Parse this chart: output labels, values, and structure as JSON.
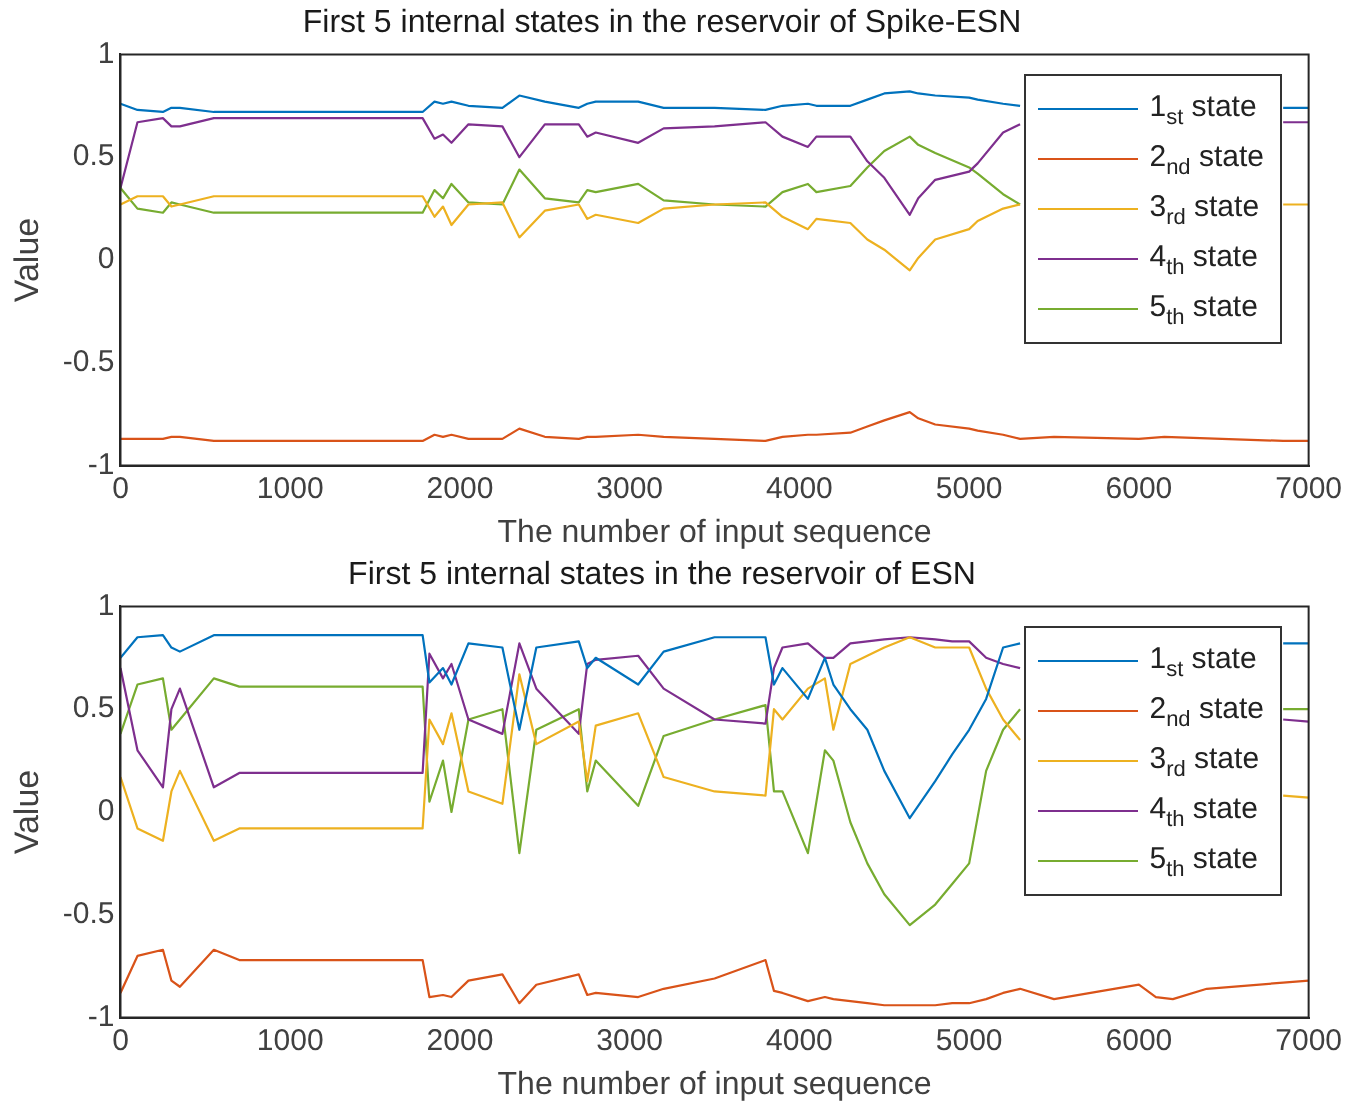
{
  "chart_data": [
    {
      "type": "line",
      "title": "First 5 internal states in the reservoir of Spike-ESN",
      "xlabel": "The number of input sequence",
      "ylabel": "Value",
      "x": [
        0,
        100,
        250,
        300,
        350,
        550,
        1780,
        1850,
        1900,
        1950,
        2050,
        2250,
        2350,
        2500,
        2700,
        2750,
        2800,
        3050,
        3200,
        3500,
        3800,
        3900,
        4050,
        4100,
        4300,
        4400,
        4500,
        4650,
        4700,
        4800,
        5000,
        5050,
        5200,
        5300,
        5500,
        6000,
        6150,
        6850,
        7000
      ],
      "series": [
        {
          "name": "1$_{st}$ state",
          "color": "#0072bd",
          "values": [
            0.76,
            0.73,
            0.72,
            0.74,
            0.74,
            0.72,
            0.72,
            0.77,
            0.76,
            0.77,
            0.75,
            0.74,
            0.8,
            0.77,
            0.74,
            0.76,
            0.77,
            0.77,
            0.74,
            0.74,
            0.73,
            0.75,
            0.76,
            0.75,
            0.75,
            0.78,
            0.81,
            0.82,
            0.81,
            0.8,
            0.79,
            0.78,
            0.76,
            0.75,
            null,
            null,
            null,
            0.74,
            0.74
          ]
        },
        {
          "name": "2$_{nd}$ state",
          "color": "#d95319",
          "values": [
            -0.87,
            -0.87,
            -0.87,
            -0.86,
            -0.86,
            -0.88,
            -0.88,
            -0.85,
            -0.86,
            -0.85,
            -0.87,
            -0.87,
            -0.82,
            -0.86,
            -0.87,
            -0.86,
            -0.86,
            -0.85,
            -0.86,
            -0.87,
            -0.88,
            -0.86,
            -0.85,
            -0.85,
            -0.84,
            -0.81,
            -0.78,
            -0.74,
            -0.77,
            -0.8,
            -0.82,
            -0.83,
            -0.85,
            -0.87,
            -0.86,
            -0.87,
            -0.86,
            -0.88,
            -0.88
          ]
        },
        {
          "name": "3$_{rd}$ state",
          "color": "#edb120",
          "values": [
            0.27,
            0.31,
            0.31,
            0.26,
            0.27,
            0.31,
            0.31,
            0.21,
            0.26,
            0.17,
            0.27,
            0.28,
            0.11,
            0.24,
            0.27,
            0.2,
            0.22,
            0.18,
            0.25,
            0.27,
            0.28,
            0.21,
            0.15,
            0.2,
            0.18,
            0.1,
            0.05,
            -0.05,
            0.01,
            0.1,
            0.15,
            0.19,
            0.25,
            0.27,
            null,
            null,
            null,
            0.27,
            0.27
          ]
        },
        {
          "name": "4$_{th}$ state",
          "color": "#7e2f8e",
          "values": [
            0.35,
            0.67,
            0.69,
            0.65,
            0.65,
            0.69,
            0.69,
            0.59,
            0.61,
            0.57,
            0.66,
            0.65,
            0.5,
            0.66,
            0.66,
            0.6,
            0.62,
            0.57,
            0.64,
            0.65,
            0.67,
            0.6,
            0.55,
            0.6,
            0.6,
            0.48,
            0.4,
            0.22,
            0.3,
            0.39,
            0.43,
            0.47,
            0.62,
            0.66,
            null,
            null,
            null,
            0.67,
            0.67
          ]
        },
        {
          "name": "5$_{th}$ state",
          "color": "#77ac30",
          "values": [
            0.35,
            0.25,
            0.23,
            0.28,
            0.27,
            0.23,
            0.23,
            0.34,
            0.3,
            0.37,
            0.28,
            0.27,
            0.44,
            0.3,
            0.28,
            0.34,
            0.33,
            0.37,
            0.29,
            0.27,
            0.26,
            0.33,
            0.37,
            0.33,
            0.36,
            0.45,
            0.53,
            0.6,
            0.56,
            0.52,
            0.45,
            0.42,
            0.32,
            0.27,
            null,
            null,
            null,
            null,
            null
          ]
        }
      ],
      "xlim": [
        0,
        7000
      ],
      "xticks": [
        0,
        1000,
        2000,
        3000,
        4000,
        5000,
        6000,
        7000
      ],
      "ylim": [
        -1,
        1
      ],
      "yticks": [
        -1,
        -0.5,
        0,
        0.5,
        1
      ],
      "legend": "top right",
      "marker": "none",
      "line_style": "solid"
    },
    {
      "type": "line",
      "title": "First 5 internal states in the reservoir of ESN",
      "xlabel": "The number of input sequence",
      "ylabel": "Value",
      "x": [
        0,
        100,
        250,
        300,
        350,
        550,
        700,
        1780,
        1820,
        1900,
        1950,
        2050,
        2250,
        2350,
        2450,
        2700,
        2750,
        2800,
        3050,
        3200,
        3500,
        3800,
        3850,
        3900,
        4050,
        4150,
        4200,
        4300,
        4400,
        4500,
        4650,
        4800,
        4900,
        5000,
        5100,
        5200,
        5300,
        5500,
        6000,
        6100,
        6200,
        6400,
        6850,
        7000
      ],
      "series": [
        {
          "name": "1$_{st}$ state",
          "color": "#0072bd",
          "values": [
            0.75,
            0.85,
            0.86,
            0.8,
            0.78,
            0.86,
            0.86,
            0.86,
            0.63,
            0.7,
            0.62,
            0.82,
            0.8,
            0.4,
            0.8,
            0.83,
            0.7,
            0.75,
            0.62,
            0.78,
            0.85,
            0.85,
            0.62,
            0.7,
            0.55,
            0.75,
            0.62,
            0.5,
            0.4,
            0.2,
            -0.03,
            0.15,
            0.28,
            0.4,
            0.55,
            0.8,
            0.82,
            null,
            null,
            null,
            null,
            null,
            0.82,
            0.82
          ]
        },
        {
          "name": "2$_{nd}$ state",
          "color": "#d95319",
          "values": [
            -0.88,
            -0.7,
            -0.67,
            -0.82,
            -0.85,
            -0.67,
            -0.72,
            -0.72,
            -0.9,
            -0.89,
            -0.9,
            -0.82,
            -0.79,
            -0.93,
            -0.84,
            -0.79,
            -0.89,
            -0.88,
            -0.9,
            -0.86,
            -0.81,
            -0.72,
            -0.87,
            -0.88,
            -0.92,
            -0.9,
            -0.91,
            -0.92,
            -0.93,
            -0.94,
            -0.94,
            -0.94,
            -0.93,
            -0.93,
            -0.91,
            -0.88,
            -0.86,
            -0.91,
            -0.84,
            -0.9,
            -0.91,
            -0.86,
            -0.83,
            -0.82
          ]
        },
        {
          "name": "3$_{rd}$ state",
          "color": "#edb120",
          "values": [
            0.17,
            -0.08,
            -0.14,
            0.1,
            0.2,
            -0.14,
            -0.08,
            -0.08,
            0.45,
            0.33,
            0.48,
            0.1,
            0.04,
            0.67,
            0.33,
            0.44,
            0.15,
            0.42,
            0.48,
            0.17,
            0.1,
            0.08,
            0.5,
            0.45,
            0.6,
            0.65,
            0.4,
            0.72,
            0.76,
            0.8,
            0.85,
            0.8,
            0.8,
            0.8,
            0.6,
            0.45,
            0.35,
            null,
            null,
            null,
            null,
            null,
            0.08,
            0.07
          ]
        },
        {
          "name": "4$_{th}$ state",
          "color": "#7e2f8e",
          "values": [
            0.7,
            0.3,
            0.12,
            0.5,
            0.6,
            0.12,
            0.19,
            0.19,
            0.77,
            0.65,
            0.72,
            0.45,
            0.38,
            0.82,
            0.6,
            0.38,
            0.72,
            0.74,
            0.76,
            0.6,
            0.45,
            0.43,
            0.7,
            0.8,
            0.82,
            0.75,
            0.75,
            0.82,
            0.83,
            0.84,
            0.85,
            0.84,
            0.83,
            0.83,
            0.75,
            0.72,
            0.7,
            null,
            null,
            null,
            null,
            null,
            0.45,
            0.44
          ]
        },
        {
          "name": "5$_{th}$ state",
          "color": "#77ac30",
          "values": [
            0.38,
            0.62,
            0.65,
            0.4,
            0.45,
            0.65,
            0.61,
            0.61,
            0.05,
            0.25,
            0.0,
            0.45,
            0.5,
            -0.2,
            0.4,
            0.5,
            0.1,
            0.25,
            0.03,
            0.37,
            0.45,
            0.52,
            0.1,
            0.1,
            -0.2,
            0.3,
            0.25,
            -0.05,
            -0.25,
            -0.4,
            -0.55,
            -0.45,
            -0.35,
            -0.25,
            0.2,
            0.4,
            0.5,
            null,
            null,
            null,
            null,
            null,
            0.5,
            0.5
          ]
        }
      ],
      "xlim": [
        0,
        7000
      ],
      "xticks": [
        0,
        1000,
        2000,
        3000,
        4000,
        5000,
        6000,
        7000
      ],
      "ylim": [
        -1,
        1
      ],
      "yticks": [
        -1,
        -0.5,
        0,
        0.5,
        1
      ],
      "legend": "top right",
      "marker": "none",
      "line_style": "solid"
    }
  ]
}
